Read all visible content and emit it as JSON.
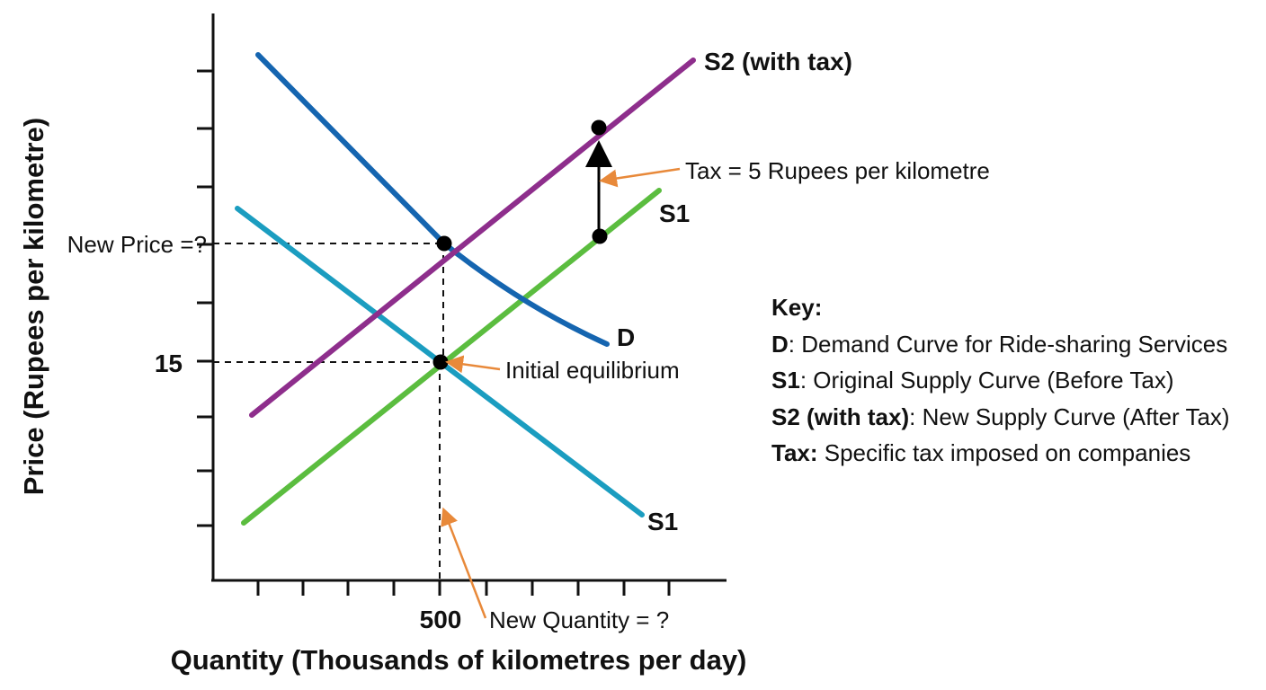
{
  "axes": {
    "y_title": "Price (Rupees per kilometre)",
    "x_title": "Quantity (Thousands of kilometres per day)",
    "y_tick_label": "15",
    "x_tick_label": "500",
    "new_price_label": "New Price =?"
  },
  "curves": {
    "demand": {
      "label": "D",
      "color": "#1565b0"
    },
    "supply_original": {
      "label": "S1",
      "color": "#5bbd3f"
    },
    "supply_tax": {
      "label": "S2 (with tax)",
      "color": "#8e2e8c"
    },
    "supply_extra": {
      "label": "S1",
      "color": "#1b9dc0"
    }
  },
  "annotations": {
    "tax": "Tax = 5 Rupees per kilometre",
    "initial_equilibrium": "Initial equilibrium",
    "new_quantity": "New Quantity = ?",
    "arrow_color": "#e8893a"
  },
  "key": {
    "title": "Key:",
    "items": [
      {
        "term": "D",
        "desc": ": Demand Curve for Ride-sharing Services"
      },
      {
        "term": "S1",
        "desc": ": Original Supply Curve (Before Tax)"
      },
      {
        "term": "S2 (with tax)",
        "desc": ": New Supply Curve (After Tax)"
      },
      {
        "term": "Tax:",
        "desc": " Specific tax imposed on companies"
      }
    ]
  }
}
